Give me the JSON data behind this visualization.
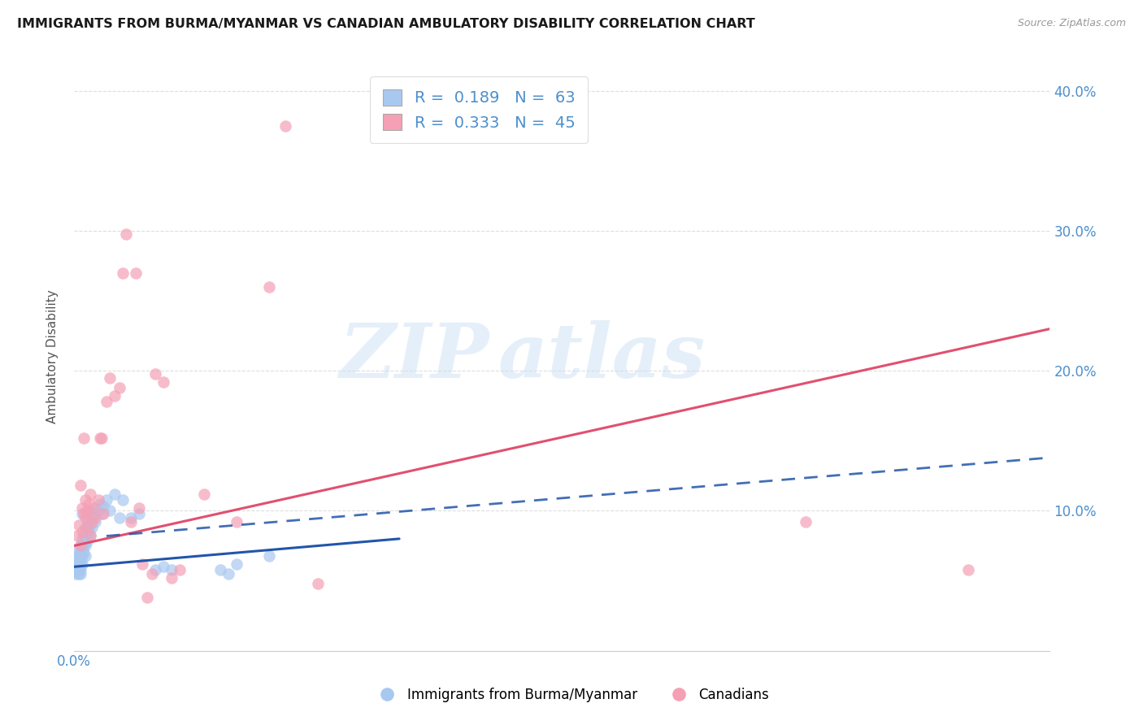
{
  "title": "IMMIGRANTS FROM BURMA/MYANMAR VS CANADIAN AMBULATORY DISABILITY CORRELATION CHART",
  "source": "Source: ZipAtlas.com",
  "tick_color": "#4d8fcc",
  "ylabel": "Ambulatory Disability",
  "xlim": [
    0.0,
    0.6
  ],
  "ylim": [
    0.0,
    0.42
  ],
  "xtick_vals": [
    0.0,
    0.1,
    0.2,
    0.3,
    0.4,
    0.5,
    0.6
  ],
  "xtick_labels_visible": {
    "0.0": "0.0%"
  },
  "yticks": [
    0.0,
    0.1,
    0.2,
    0.3,
    0.4
  ],
  "ytick_labels": [
    "",
    "10.0%",
    "20.0%",
    "30.0%",
    "40.0%"
  ],
  "blue_R": 0.189,
  "blue_N": 63,
  "pink_R": 0.333,
  "pink_N": 45,
  "blue_color": "#a8c8f0",
  "pink_color": "#f5a0b5",
  "blue_line_color": "#2255aa",
  "pink_line_color": "#e05070",
  "blue_line": [
    [
      0.0,
      0.06
    ],
    [
      0.2,
      0.08
    ]
  ],
  "blue_dashed_line": [
    [
      0.02,
      0.082
    ],
    [
      0.6,
      0.138
    ]
  ],
  "pink_line": [
    [
      0.0,
      0.075
    ],
    [
      0.6,
      0.23
    ]
  ],
  "blue_scatter": [
    [
      0.001,
      0.06
    ],
    [
      0.001,
      0.055
    ],
    [
      0.001,
      0.062
    ],
    [
      0.001,
      0.058
    ],
    [
      0.002,
      0.065
    ],
    [
      0.002,
      0.06
    ],
    [
      0.002,
      0.058
    ],
    [
      0.002,
      0.062
    ],
    [
      0.002,
      0.056
    ],
    [
      0.003,
      0.07
    ],
    [
      0.003,
      0.065
    ],
    [
      0.003,
      0.068
    ],
    [
      0.003,
      0.072
    ],
    [
      0.003,
      0.06
    ],
    [
      0.003,
      0.058
    ],
    [
      0.003,
      0.055
    ],
    [
      0.004,
      0.075
    ],
    [
      0.004,
      0.068
    ],
    [
      0.004,
      0.063
    ],
    [
      0.004,
      0.058
    ],
    [
      0.004,
      0.055
    ],
    [
      0.005,
      0.08
    ],
    [
      0.005,
      0.073
    ],
    [
      0.005,
      0.068
    ],
    [
      0.005,
      0.062
    ],
    [
      0.005,
      0.098
    ],
    [
      0.006,
      0.082
    ],
    [
      0.006,
      0.076
    ],
    [
      0.006,
      0.07
    ],
    [
      0.007,
      0.088
    ],
    [
      0.007,
      0.082
    ],
    [
      0.007,
      0.075
    ],
    [
      0.007,
      0.068
    ],
    [
      0.008,
      0.095
    ],
    [
      0.008,
      0.085
    ],
    [
      0.008,
      0.078
    ],
    [
      0.009,
      0.092
    ],
    [
      0.009,
      0.085
    ],
    [
      0.01,
      0.1
    ],
    [
      0.01,
      0.09
    ],
    [
      0.01,
      0.082
    ],
    [
      0.011,
      0.095
    ],
    [
      0.011,
      0.088
    ],
    [
      0.012,
      0.098
    ],
    [
      0.013,
      0.092
    ],
    [
      0.015,
      0.1
    ],
    [
      0.016,
      0.105
    ],
    [
      0.017,
      0.098
    ],
    [
      0.018,
      0.103
    ],
    [
      0.02,
      0.108
    ],
    [
      0.022,
      0.1
    ],
    [
      0.025,
      0.112
    ],
    [
      0.028,
      0.095
    ],
    [
      0.03,
      0.108
    ],
    [
      0.035,
      0.095
    ],
    [
      0.04,
      0.098
    ],
    [
      0.05,
      0.058
    ],
    [
      0.055,
      0.06
    ],
    [
      0.06,
      0.058
    ],
    [
      0.09,
      0.058
    ],
    [
      0.095,
      0.055
    ],
    [
      0.1,
      0.062
    ],
    [
      0.12,
      0.068
    ]
  ],
  "pink_scatter": [
    [
      0.002,
      0.082
    ],
    [
      0.003,
      0.09
    ],
    [
      0.004,
      0.075
    ],
    [
      0.004,
      0.118
    ],
    [
      0.005,
      0.102
    ],
    [
      0.005,
      0.085
    ],
    [
      0.006,
      0.098
    ],
    [
      0.006,
      0.152
    ],
    [
      0.007,
      0.108
    ],
    [
      0.007,
      0.095
    ],
    [
      0.008,
      0.1
    ],
    [
      0.008,
      0.088
    ],
    [
      0.009,
      0.105
    ],
    [
      0.01,
      0.112
    ],
    [
      0.01,
      0.082
    ],
    [
      0.011,
      0.092
    ],
    [
      0.012,
      0.102
    ],
    [
      0.013,
      0.095
    ],
    [
      0.015,
      0.108
    ],
    [
      0.016,
      0.152
    ],
    [
      0.017,
      0.152
    ],
    [
      0.018,
      0.098
    ],
    [
      0.02,
      0.178
    ],
    [
      0.022,
      0.195
    ],
    [
      0.025,
      0.182
    ],
    [
      0.028,
      0.188
    ],
    [
      0.03,
      0.27
    ],
    [
      0.032,
      0.298
    ],
    [
      0.035,
      0.092
    ],
    [
      0.038,
      0.27
    ],
    [
      0.04,
      0.102
    ],
    [
      0.042,
      0.062
    ],
    [
      0.045,
      0.038
    ],
    [
      0.048,
      0.055
    ],
    [
      0.05,
      0.198
    ],
    [
      0.055,
      0.192
    ],
    [
      0.06,
      0.052
    ],
    [
      0.065,
      0.058
    ],
    [
      0.08,
      0.112
    ],
    [
      0.1,
      0.092
    ],
    [
      0.12,
      0.26
    ],
    [
      0.13,
      0.375
    ],
    [
      0.15,
      0.048
    ],
    [
      0.45,
      0.092
    ],
    [
      0.55,
      0.058
    ]
  ],
  "watermark_zip": "ZIP",
  "watermark_atlas": "atlas",
  "background_color": "#ffffff",
  "grid_color": "#dddddd"
}
